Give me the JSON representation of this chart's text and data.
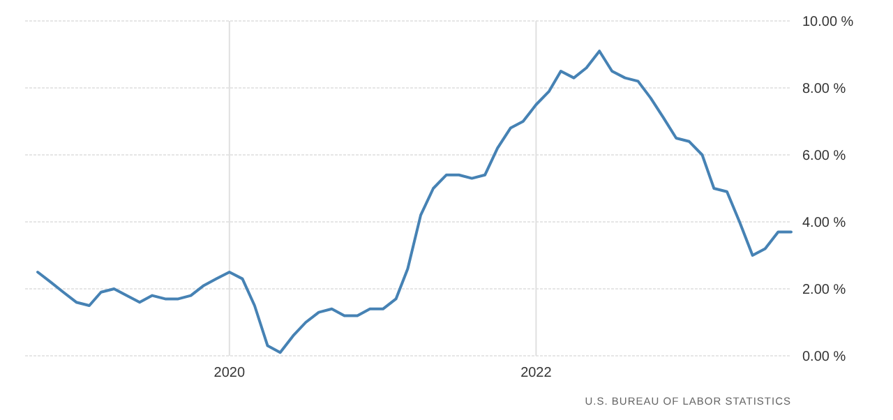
{
  "chart_data": {
    "type": "line",
    "x": [
      "2018-10",
      "2018-11",
      "2018-12",
      "2019-01",
      "2019-02",
      "2019-03",
      "2019-04",
      "2019-05",
      "2019-06",
      "2019-07",
      "2019-08",
      "2019-09",
      "2019-10",
      "2019-11",
      "2019-12",
      "2020-01",
      "2020-02",
      "2020-03",
      "2020-04",
      "2020-05",
      "2020-06",
      "2020-07",
      "2020-08",
      "2020-09",
      "2020-10",
      "2020-11",
      "2020-12",
      "2021-01",
      "2021-02",
      "2021-03",
      "2021-04",
      "2021-05",
      "2021-06",
      "2021-07",
      "2021-08",
      "2021-09",
      "2021-10",
      "2021-11",
      "2021-12",
      "2022-01",
      "2022-02",
      "2022-03",
      "2022-04",
      "2022-05",
      "2022-06",
      "2022-07",
      "2022-08",
      "2022-09",
      "2022-10",
      "2022-11",
      "2022-12",
      "2023-01",
      "2023-02",
      "2023-03",
      "2023-04",
      "2023-05",
      "2023-06",
      "2023-07",
      "2023-08",
      "2023-09"
    ],
    "series": [
      {
        "color": "#4682b4",
        "values": [
          2.5,
          2.2,
          1.9,
          1.6,
          1.5,
          1.9,
          2.0,
          1.8,
          1.6,
          1.8,
          1.7,
          1.7,
          1.8,
          2.1,
          2.3,
          2.5,
          2.3,
          1.5,
          0.3,
          0.1,
          0.6,
          1.0,
          1.3,
          1.4,
          1.2,
          1.2,
          1.4,
          1.4,
          1.7,
          2.6,
          4.2,
          5.0,
          5.4,
          5.4,
          5.3,
          5.4,
          6.2,
          6.8,
          7.0,
          7.5,
          7.9,
          8.5,
          8.3,
          8.6,
          9.1,
          8.5,
          8.3,
          8.2,
          7.7,
          7.1,
          6.5,
          6.4,
          6.0,
          5.0,
          4.9,
          4.0,
          3.0,
          3.2,
          3.7,
          3.7
        ]
      }
    ],
    "xlim": [
      "2018-09",
      "2023-09"
    ],
    "xticks": [
      {
        "value": "2020-01",
        "label": "2020"
      },
      {
        "value": "2022-01",
        "label": "2022"
      }
    ],
    "ylim": [
      0,
      10
    ],
    "yticks": [
      {
        "value": 0,
        "label": "0.00 %"
      },
      {
        "value": 2,
        "label": "2.00 %"
      },
      {
        "value": 4,
        "label": "4.00 %"
      },
      {
        "value": 6,
        "label": "6.00 %"
      },
      {
        "value": 8,
        "label": "8.00 %"
      },
      {
        "value": 10,
        "label": "10.00 %"
      }
    ],
    "grid": true,
    "line_style": "solid",
    "annotations": [
      "U.S. BUREAU OF LABOR STATISTICS"
    ]
  }
}
